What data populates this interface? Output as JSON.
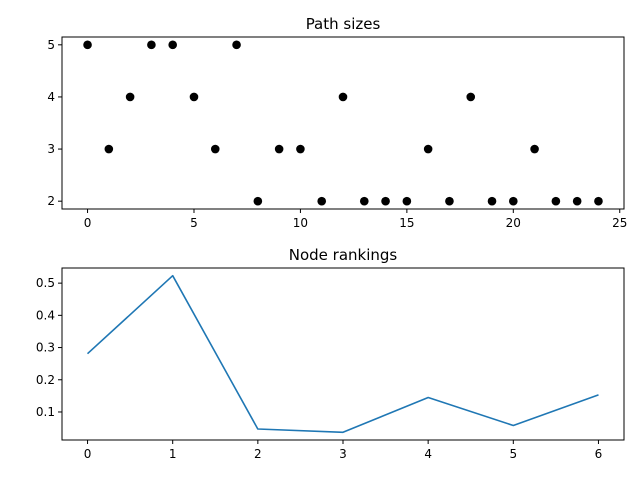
{
  "chart_data": [
    {
      "type": "scatter",
      "title": "Path sizes",
      "xlabel": "",
      "ylabel": "",
      "x": [
        0,
        1,
        2,
        3,
        4,
        5,
        6,
        7,
        8,
        9,
        10,
        11,
        12,
        13,
        14,
        15,
        16,
        17,
        18,
        19,
        20,
        21,
        22,
        23,
        24
      ],
      "y": [
        5,
        3,
        4,
        5,
        5,
        4,
        3,
        5,
        2,
        3,
        3,
        2,
        4,
        2,
        2,
        2,
        3,
        2,
        4,
        2,
        2,
        3,
        2,
        2,
        2
      ],
      "xlim": [
        -1.2,
        25.2
      ],
      "ylim": [
        1.85,
        5.15
      ],
      "xticks": [
        0,
        5,
        10,
        15,
        20,
        25
      ],
      "yticks": [
        2,
        3,
        4,
        5
      ],
      "marker_color": "#000000",
      "grid": false
    },
    {
      "type": "line",
      "title": "Node rankings",
      "xlabel": "",
      "ylabel": "",
      "x": [
        0,
        1,
        2,
        3,
        4,
        5,
        6
      ],
      "y": [
        0.281,
        0.523,
        0.047,
        0.037,
        0.145,
        0.058,
        0.153
      ],
      "xlim": [
        -0.3,
        6.3
      ],
      "ylim": [
        0.013,
        0.547
      ],
      "xticks": [
        0,
        1,
        2,
        3,
        4,
        5,
        6
      ],
      "yticks": [
        0.1,
        0.2,
        0.3,
        0.4,
        0.5
      ],
      "line_color": "#1f77b4",
      "grid": false
    }
  ]
}
